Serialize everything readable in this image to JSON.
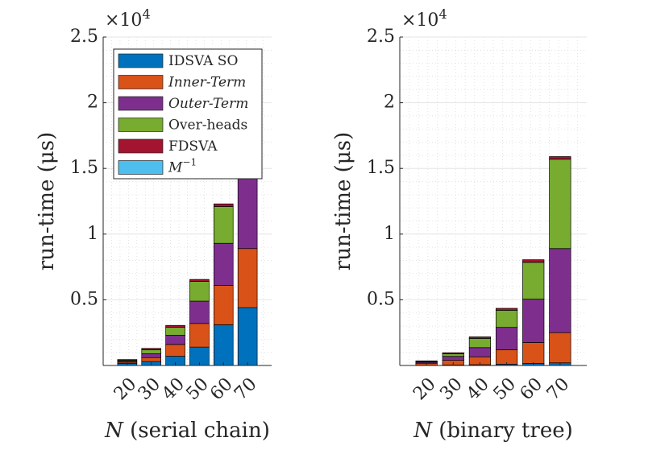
{
  "chart_data": [
    {
      "type": "bar",
      "stacked": true,
      "categories": [
        "20",
        "30",
        "40",
        "50",
        "60",
        "70"
      ],
      "ylabel": "run-time (μs)",
      "y_exponent_label": "×10",
      "y_exponent_power": "4",
      "xlabel_var": "N",
      "xlabel_rest": " (serial chain)",
      "ylim": [
        0,
        25000
      ],
      "yticks": [
        0.5,
        1,
        1.5,
        2,
        2.5
      ],
      "ytick_labels": [
        "0.5",
        "1",
        "1.5",
        "2",
        "2.5"
      ],
      "grid": true,
      "legend_placement": "top-left",
      "series": [
        {
          "name": "IDSVA SO",
          "color": "#0072BD",
          "values": [
            150,
            300,
            700,
            1400,
            3100,
            4400
          ]
        },
        {
          "name": "Inner-Term",
          "color": "#D95319",
          "values": [
            100,
            300,
            900,
            1800,
            3000,
            4500
          ]
        },
        {
          "name": "Outer-Term",
          "color": "#7E2F8E",
          "values": [
            100,
            300,
            700,
            1700,
            3200,
            6600
          ]
        },
        {
          "name": "Over-heads",
          "color": "#77AC30",
          "values": [
            60,
            300,
            600,
            1500,
            2800,
            7000
          ]
        },
        {
          "name": "FDSVA",
          "color": "#A2142F",
          "values": [
            40,
            100,
            150,
            150,
            200,
            200
          ]
        },
        {
          "name": "M",
          "color": "#4DBEEE",
          "values": [
            0,
            0,
            0,
            0,
            0,
            0
          ]
        }
      ]
    },
    {
      "type": "bar",
      "stacked": true,
      "categories": [
        "20",
        "30",
        "40",
        "50",
        "60",
        "70"
      ],
      "ylabel": "run-time (μs)",
      "y_exponent_label": "×10",
      "y_exponent_power": "4",
      "xlabel_var": "N",
      "xlabel_rest": " (binary tree)",
      "ylim": [
        0,
        25000
      ],
      "yticks": [
        0.5,
        1,
        1.5,
        2,
        2.5
      ],
      "ytick_labels": [
        "0.5",
        "1",
        "1.5",
        "2",
        "2.5"
      ],
      "grid": true,
      "series": [
        {
          "name": "IDSVA SO",
          "color": "#0072BD",
          "values": [
            20,
            40,
            60,
            100,
            150,
            200
          ]
        },
        {
          "name": "Inner-Term",
          "color": "#D95319",
          "values": [
            150,
            350,
            600,
            1100,
            1600,
            2300
          ]
        },
        {
          "name": "Outer-Term",
          "color": "#7E2F8E",
          "values": [
            80,
            300,
            700,
            1700,
            3300,
            6400
          ]
        },
        {
          "name": "Over-heads",
          "color": "#77AC30",
          "values": [
            60,
            200,
            700,
            1300,
            2800,
            6800
          ]
        },
        {
          "name": "FDSVA",
          "color": "#A2142F",
          "values": [
            40,
            80,
            120,
            150,
            200,
            200
          ]
        },
        {
          "name": "M",
          "color": "#4DBEEE",
          "values": [
            0,
            0,
            0,
            0,
            0,
            0
          ]
        }
      ]
    }
  ],
  "legend": {
    "items": [
      {
        "label": "IDSVA SO",
        "color": "#0072BD",
        "italic": false,
        "sup": ""
      },
      {
        "label": "Inner-Term",
        "color": "#D95319",
        "italic": true,
        "sup": ""
      },
      {
        "label": "Outer-Term",
        "color": "#7E2F8E",
        "italic": true,
        "sup": ""
      },
      {
        "label": "Over-heads",
        "color": "#77AC30",
        "italic": false,
        "sup": ""
      },
      {
        "label": "FDSVA",
        "color": "#A2142F",
        "italic": false,
        "sup": ""
      },
      {
        "label": "M",
        "color": "#4DBEEE",
        "italic": true,
        "sup": "−1"
      }
    ]
  }
}
